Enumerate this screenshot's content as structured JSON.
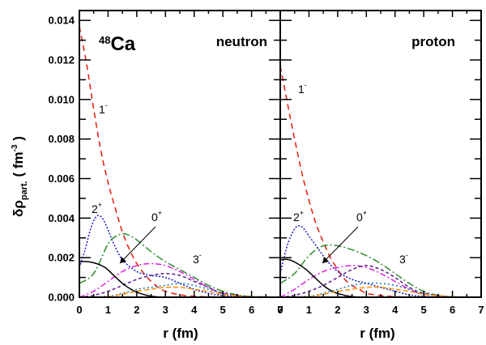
{
  "chart_data": [
    {
      "type": "line",
      "panel": "left",
      "panel_label": "neutron",
      "nucleus": {
        "mass_number": "48",
        "symbol": "Ca"
      },
      "xlim": [
        0,
        7
      ],
      "ylim": [
        0,
        0.0145
      ],
      "x_ticks": [
        "0",
        "1",
        "2",
        "3",
        "4",
        "5",
        "6",
        "7"
      ],
      "y_ticks": [
        "0.000",
        "0.002",
        "0.004",
        "0.006",
        "0.008",
        "0.010",
        "0.012",
        "0.014"
      ],
      "xlabel": "r (fm)",
      "ylabel": {
        "main": "δρ",
        "sub": "part.",
        "unit": "( fm",
        "unit_sup": "-3",
        "unit_close": ")"
      },
      "annotations": [
        {
          "base": "1",
          "sup": "-"
        },
        {
          "base": "2",
          "sup": "+"
        },
        {
          "base": "0",
          "sup": "+"
        },
        {
          "base": "3",
          "sup": "-"
        }
      ],
      "series": [
        {
          "color": "#e8190c",
          "dash": "7,5",
          "x": [
            0,
            0.25,
            0.5,
            0.75,
            1.0,
            1.25,
            1.5,
            1.75,
            2.0,
            2.25,
            2.5,
            2.75,
            3.0,
            3.5,
            4.0,
            5.0,
            7.0
          ],
          "y": [
            0.0137,
            0.0118,
            0.0095,
            0.0074,
            0.0058,
            0.0045,
            0.0033,
            0.0024,
            0.0017,
            0.0012,
            0.0008,
            0.0005,
            0.0003,
            0.00012,
            5e-05,
            1e-05,
            0
          ]
        },
        {
          "color": "#1a1acc",
          "dash": "2,2",
          "x": [
            0,
            0.2,
            0.4,
            0.6,
            0.8,
            1.0,
            1.2,
            1.5,
            2.0,
            2.5,
            3.0,
            3.5,
            4.0,
            4.5,
            5.0,
            6.0,
            7.0
          ],
          "y": [
            0.0015,
            0.0024,
            0.0035,
            0.0041,
            0.004,
            0.0034,
            0.0027,
            0.0019,
            0.0013,
            0.0011,
            0.001,
            0.0007,
            0.0004,
            0.0002,
            8e-05,
            1e-05,
            0
          ]
        },
        {
          "color": "#2e8b2e",
          "dash": "9,3,2,3",
          "x": [
            0,
            0.5,
            1.0,
            1.3,
            1.6,
            2.0,
            2.5,
            3.0,
            3.5,
            4.0,
            4.5,
            5.0,
            5.5,
            6.0,
            7.0
          ],
          "y": [
            0.0007,
            0.0012,
            0.0027,
            0.0031,
            0.0032,
            0.0029,
            0.0023,
            0.0018,
            0.0014,
            0.001,
            0.0006,
            0.0003,
            0.00012,
            4e-05,
            0
          ]
        },
        {
          "color": "#e020e0",
          "dash": "7,3,2,3",
          "x": [
            0,
            0.5,
            1.0,
            1.5,
            2.0,
            2.5,
            3.0,
            3.5,
            4.0,
            4.5,
            5.0,
            6.0,
            7.0
          ],
          "y": [
            0,
            0.0003,
            0.0008,
            0.0013,
            0.0016,
            0.0017,
            0.0016,
            0.0013,
            0.0009,
            0.0005,
            0.0002,
            2e-05,
            0
          ]
        },
        {
          "color": "#5a1a8a",
          "dash": "4,3",
          "x": [
            0,
            0.5,
            1.0,
            1.5,
            2.0,
            2.5,
            3.0,
            3.5,
            4.0,
            4.5,
            5.0,
            6.0,
            7.0
          ],
          "y": [
            0,
            0.0001,
            0.0003,
            0.0006,
            0.0009,
            0.0011,
            0.0012,
            0.0011,
            0.0008,
            0.0005,
            0.0002,
            2e-05,
            0
          ]
        },
        {
          "color": "#000000",
          "dash": "",
          "x": [
            0,
            0.3,
            0.6,
            0.9,
            1.2,
            1.5,
            1.8,
            2.1,
            2.4,
            2.7,
            3.0,
            3.5,
            4.0,
            5.0,
            7.0
          ],
          "y": [
            0.0018,
            0.0018,
            0.0017,
            0.0015,
            0.0011,
            0.0007,
            0.0004,
            0.0002,
            8e-05,
            2e-05,
            0,
            0,
            0,
            0,
            0
          ]
        },
        {
          "color": "#1a7ab8",
          "dash": "2,3",
          "x": [
            0,
            1.0,
            1.5,
            2.0,
            2.5,
            3.0,
            3.5,
            4.0,
            4.5,
            5.0,
            6.0,
            7.0
          ],
          "y": [
            0,
            5e-05,
            0.0002,
            0.0004,
            0.0005,
            0.0006,
            0.0007,
            0.0006,
            0.0004,
            0.0002,
            2e-05,
            0
          ]
        },
        {
          "color": "#ff8c00",
          "dash": "6,3",
          "x": [
            0,
            1.0,
            1.5,
            2.0,
            2.5,
            3.0,
            3.5,
            4.0,
            4.5,
            5.0,
            6.0,
            7.0
          ],
          "y": [
            0,
            3e-05,
            0.00015,
            0.0003,
            0.0004,
            0.0005,
            0.0005,
            0.0004,
            0.0003,
            0.00015,
            2e-05,
            0
          ]
        }
      ]
    },
    {
      "type": "line",
      "panel": "right",
      "panel_label": "proton",
      "xlim": [
        0,
        7
      ],
      "ylim": [
        0,
        0.0145
      ],
      "x_ticks": [
        "0",
        "1",
        "2",
        "3",
        "4",
        "5",
        "6",
        "7"
      ],
      "xlabel": "r (fm)",
      "annotations": [
        {
          "base": "1",
          "sup": "-"
        },
        {
          "base": "2",
          "sup": "+"
        },
        {
          "base": "0",
          "sup": "+"
        },
        {
          "base": "3",
          "sup": "-"
        }
      ],
      "series": [
        {
          "color": "#e8190c",
          "dash": "7,5",
          "x": [
            0,
            0.25,
            0.5,
            0.75,
            1.0,
            1.25,
            1.5,
            1.75,
            2.0,
            2.25,
            2.5,
            2.75,
            3.0,
            3.5,
            4.0,
            5.0,
            7.0
          ],
          "y": [
            0.0117,
            0.0098,
            0.008,
            0.0063,
            0.0049,
            0.0037,
            0.0028,
            0.002,
            0.0014,
            0.0009,
            0.0006,
            0.0004,
            0.0002,
            8e-05,
            3e-05,
            0,
            0
          ]
        },
        {
          "color": "#1a1acc",
          "dash": "2,2",
          "x": [
            0,
            0.2,
            0.4,
            0.6,
            0.8,
            1.0,
            1.3,
            1.6,
            2.0,
            2.5,
            3.0,
            3.5,
            4.0,
            4.5,
            5.0,
            6.0,
            7.0
          ],
          "y": [
            0.0012,
            0.0024,
            0.0032,
            0.0036,
            0.0035,
            0.0031,
            0.0025,
            0.0019,
            0.0013,
            0.0009,
            0.0007,
            0.0005,
            0.0003,
            0.00012,
            4e-05,
            0,
            0
          ]
        },
        {
          "color": "#2e8b2e",
          "dash": "9,3,2,3",
          "x": [
            0,
            0.5,
            1.0,
            1.5,
            2.0,
            2.5,
            3.0,
            3.5,
            4.0,
            4.5,
            5.0,
            5.5,
            6.0,
            7.0
          ],
          "y": [
            0.0007,
            0.0012,
            0.0021,
            0.0026,
            0.0026,
            0.0024,
            0.0021,
            0.0017,
            0.0012,
            0.0007,
            0.0003,
            0.0001,
            3e-05,
            0
          ]
        },
        {
          "color": "#e020e0",
          "dash": "7,3,2,3",
          "x": [
            0,
            0.5,
            1.0,
            1.5,
            2.0,
            2.5,
            3.0,
            3.5,
            4.0,
            4.5,
            5.0,
            6.0,
            7.0
          ],
          "y": [
            0,
            0.0004,
            0.0009,
            0.0013,
            0.0015,
            0.0016,
            0.0015,
            0.0012,
            0.0008,
            0.0004,
            0.00015,
            1e-05,
            0
          ]
        },
        {
          "color": "#5a1a8a",
          "dash": "4,3",
          "x": [
            0,
            0.5,
            1.0,
            1.5,
            2.0,
            2.5,
            3.0,
            3.5,
            4.0,
            4.5,
            5.0,
            6.0,
            7.0
          ],
          "y": [
            0,
            0.0001,
            0.0003,
            0.0006,
            0.001,
            0.0014,
            0.0016,
            0.0014,
            0.001,
            0.0005,
            0.0002,
            1e-05,
            0
          ]
        },
        {
          "color": "#000000",
          "dash": "",
          "x": [
            0,
            0.3,
            0.6,
            0.9,
            1.2,
            1.5,
            1.8,
            2.1,
            2.4,
            2.7,
            3.0,
            3.5,
            4.0,
            5.0,
            7.0
          ],
          "y": [
            0.0019,
            0.0019,
            0.0017,
            0.0014,
            0.001,
            0.0006,
            0.0003,
            0.00015,
            5e-05,
            1e-05,
            0,
            0,
            0,
            0,
            0
          ]
        },
        {
          "color": "#1a7ab8",
          "dash": "2,3",
          "x": [
            0,
            1.0,
            1.5,
            2.0,
            2.5,
            3.0,
            3.5,
            4.0,
            4.5,
            5.0,
            6.0,
            7.0
          ],
          "y": [
            0,
            5e-05,
            0.0002,
            0.0004,
            0.0006,
            0.0007,
            0.0007,
            0.0006,
            0.0004,
            0.0002,
            2e-05,
            0
          ]
        },
        {
          "color": "#ff8c00",
          "dash": "6,3",
          "x": [
            0,
            1.0,
            1.5,
            2.0,
            2.5,
            3.0,
            3.5,
            4.0,
            4.5,
            5.0,
            6.0,
            7.0
          ],
          "y": [
            0,
            3e-05,
            0.00015,
            0.0003,
            0.0004,
            0.0005,
            0.0005,
            0.0004,
            0.0003,
            0.00015,
            2e-05,
            0
          ]
        }
      ]
    }
  ]
}
